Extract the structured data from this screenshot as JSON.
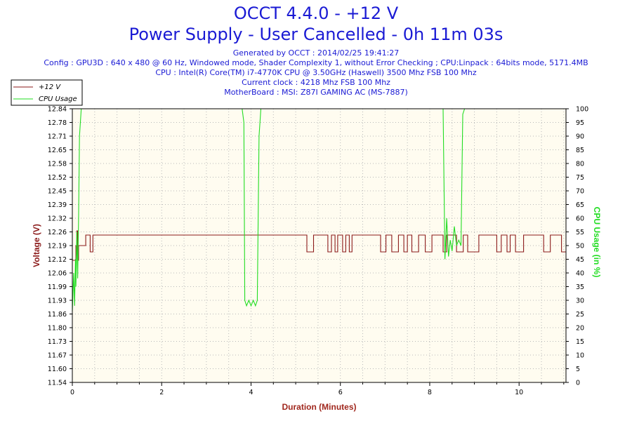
{
  "header": {
    "title_line1": "OCCT 4.4.0 - +12 V",
    "title_line2": "Power Supply - User Cancelled - 0h 11m 03s",
    "generated": "Generated by OCCT : 2014/02/25 19:41:27",
    "config": "Config : GPU3D : 640 x 480 @ 60 Hz, Windowed mode, Shader Complexity 1, without Error Checking ; CPU:Linpack : 64bits mode, 5171.4MB",
    "cpu": "CPU : Intel(R) Core(TM) i7-4770K CPU @ 3.50GHz (Haswell) 3500 Mhz FSB 100 Mhz",
    "clock": "Current clock : 4218 Mhz FSB 100 Mhz",
    "motherboard": "MotherBoard : MSI: Z87I GAMING AC (MS-7887)"
  },
  "colors": {
    "voltage": "#8b1a1a",
    "cpu": "#22dd22",
    "title": "#1a1ad4",
    "xlabel": "#a0281e",
    "plot_bg": "#fffcf0"
  },
  "chart_data": {
    "type": "line",
    "xlabel": "Duration (Minutes)",
    "ylabel_left": "Voltage (V)",
    "ylabel_right": "CPU Usage (in %)",
    "xlim": [
      0,
      11.05
    ],
    "x_ticks": [
      "0",
      "2",
      "4",
      "6",
      "8",
      "10"
    ],
    "ylim_left": [
      11.54,
      12.84
    ],
    "y_ticks_left": [
      "11.54",
      "11.60",
      "11.67",
      "11.73",
      "11.80",
      "11.86",
      "11.93",
      "11.99",
      "12.06",
      "12.12",
      "12.19",
      "12.26",
      "12.32",
      "12.39",
      "12.45",
      "12.52",
      "12.58",
      "12.65",
      "12.71",
      "12.78",
      "12.84"
    ],
    "ylim_right": [
      0,
      100
    ],
    "y_ticks_right": [
      "0",
      "5",
      "10",
      "15",
      "20",
      "25",
      "30",
      "35",
      "40",
      "45",
      "50",
      "55",
      "60",
      "65",
      "70",
      "75",
      "80",
      "85",
      "90",
      "95",
      "100"
    ],
    "grid": true,
    "legend_position": "top-left",
    "series": [
      {
        "name": "+12 V",
        "axis": "left",
        "points": [
          [
            0,
            12.12
          ],
          [
            0.08,
            12.12
          ],
          [
            0.08,
            12.19
          ],
          [
            0.1,
            12.19
          ],
          [
            0.1,
            12.26
          ],
          [
            0.12,
            12.26
          ],
          [
            0.12,
            12.12
          ],
          [
            0.14,
            12.12
          ],
          [
            0.14,
            12.19
          ],
          [
            0.3,
            12.19
          ],
          [
            0.3,
            12.24
          ],
          [
            0.4,
            12.24
          ],
          [
            0.4,
            12.16
          ],
          [
            0.46,
            12.16
          ],
          [
            0.46,
            12.24
          ],
          [
            5.25,
            12.24
          ],
          [
            5.25,
            12.16
          ],
          [
            5.4,
            12.16
          ],
          [
            5.4,
            12.24
          ],
          [
            5.72,
            12.24
          ],
          [
            5.72,
            12.16
          ],
          [
            5.8,
            12.16
          ],
          [
            5.8,
            12.24
          ],
          [
            5.88,
            12.24
          ],
          [
            5.88,
            12.16
          ],
          [
            5.94,
            12.16
          ],
          [
            5.94,
            12.24
          ],
          [
            6.05,
            12.24
          ],
          [
            6.05,
            12.16
          ],
          [
            6.12,
            12.16
          ],
          [
            6.12,
            12.24
          ],
          [
            6.2,
            12.24
          ],
          [
            6.2,
            12.16
          ],
          [
            6.26,
            12.16
          ],
          [
            6.26,
            12.24
          ],
          [
            6.9,
            12.24
          ],
          [
            6.9,
            12.16
          ],
          [
            7.02,
            12.16
          ],
          [
            7.02,
            12.24
          ],
          [
            7.15,
            12.24
          ],
          [
            7.15,
            12.16
          ],
          [
            7.3,
            12.16
          ],
          [
            7.3,
            12.24
          ],
          [
            7.42,
            12.24
          ],
          [
            7.42,
            12.16
          ],
          [
            7.5,
            12.16
          ],
          [
            7.5,
            12.24
          ],
          [
            7.6,
            12.24
          ],
          [
            7.6,
            12.16
          ],
          [
            7.75,
            12.16
          ],
          [
            7.75,
            12.24
          ],
          [
            7.9,
            12.24
          ],
          [
            7.9,
            12.16
          ],
          [
            8.05,
            12.16
          ],
          [
            8.05,
            12.24
          ],
          [
            8.3,
            12.24
          ],
          [
            8.3,
            12.16
          ],
          [
            8.38,
            12.16
          ],
          [
            8.38,
            12.24
          ],
          [
            8.6,
            12.24
          ],
          [
            8.6,
            12.16
          ],
          [
            8.75,
            12.16
          ],
          [
            8.75,
            12.24
          ],
          [
            8.85,
            12.24
          ],
          [
            8.85,
            12.16
          ],
          [
            9.1,
            12.16
          ],
          [
            9.1,
            12.24
          ],
          [
            9.5,
            12.24
          ],
          [
            9.5,
            12.16
          ],
          [
            9.6,
            12.16
          ],
          [
            9.6,
            12.24
          ],
          [
            9.73,
            12.24
          ],
          [
            9.73,
            12.16
          ],
          [
            9.8,
            12.16
          ],
          [
            9.8,
            12.24
          ],
          [
            9.92,
            12.24
          ],
          [
            9.92,
            12.16
          ],
          [
            10.1,
            12.16
          ],
          [
            10.1,
            12.24
          ],
          [
            10.55,
            12.24
          ],
          [
            10.55,
            12.16
          ],
          [
            10.7,
            12.16
          ],
          [
            10.7,
            12.24
          ],
          [
            10.95,
            12.24
          ],
          [
            10.95,
            12.16
          ],
          [
            11.05,
            12.16
          ]
        ]
      },
      {
        "name": "CPU Usage",
        "axis": "right",
        "points": [
          [
            0,
            26
          ],
          [
            0.03,
            40
          ],
          [
            0.05,
            28
          ],
          [
            0.07,
            45
          ],
          [
            0.08,
            35
          ],
          [
            0.1,
            55
          ],
          [
            0.12,
            38
          ],
          [
            0.14,
            60
          ],
          [
            0.16,
            90
          ],
          [
            0.2,
            100
          ],
          [
            3.8,
            100
          ],
          [
            3.84,
            95
          ],
          [
            3.86,
            30
          ],
          [
            3.9,
            28
          ],
          [
            3.95,
            30
          ],
          [
            4.0,
            28
          ],
          [
            4.05,
            30
          ],
          [
            4.1,
            28
          ],
          [
            4.14,
            30
          ],
          [
            4.18,
            90
          ],
          [
            4.22,
            100
          ],
          [
            8.3,
            100
          ],
          [
            8.34,
            45
          ],
          [
            8.38,
            60
          ],
          [
            8.42,
            46
          ],
          [
            8.46,
            52
          ],
          [
            8.5,
            48
          ],
          [
            8.55,
            57
          ],
          [
            8.6,
            50
          ],
          [
            8.65,
            52
          ],
          [
            8.7,
            50
          ],
          [
            8.74,
            98
          ],
          [
            8.78,
            100
          ],
          [
            11.05,
            100
          ]
        ]
      }
    ]
  }
}
